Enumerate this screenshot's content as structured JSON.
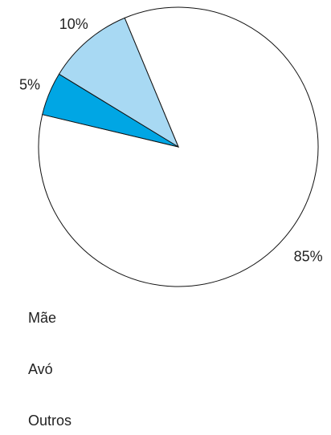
{
  "chart_data": {
    "type": "pie",
    "categories": [
      "Mãe",
      "Avó",
      "Outros"
    ],
    "values": [
      85,
      5,
      10
    ],
    "value_labels": [
      "85%",
      "5%",
      "10%"
    ],
    "colors": [
      "#ffffff",
      "#00a6e4",
      "#a8d9f3"
    ]
  }
}
